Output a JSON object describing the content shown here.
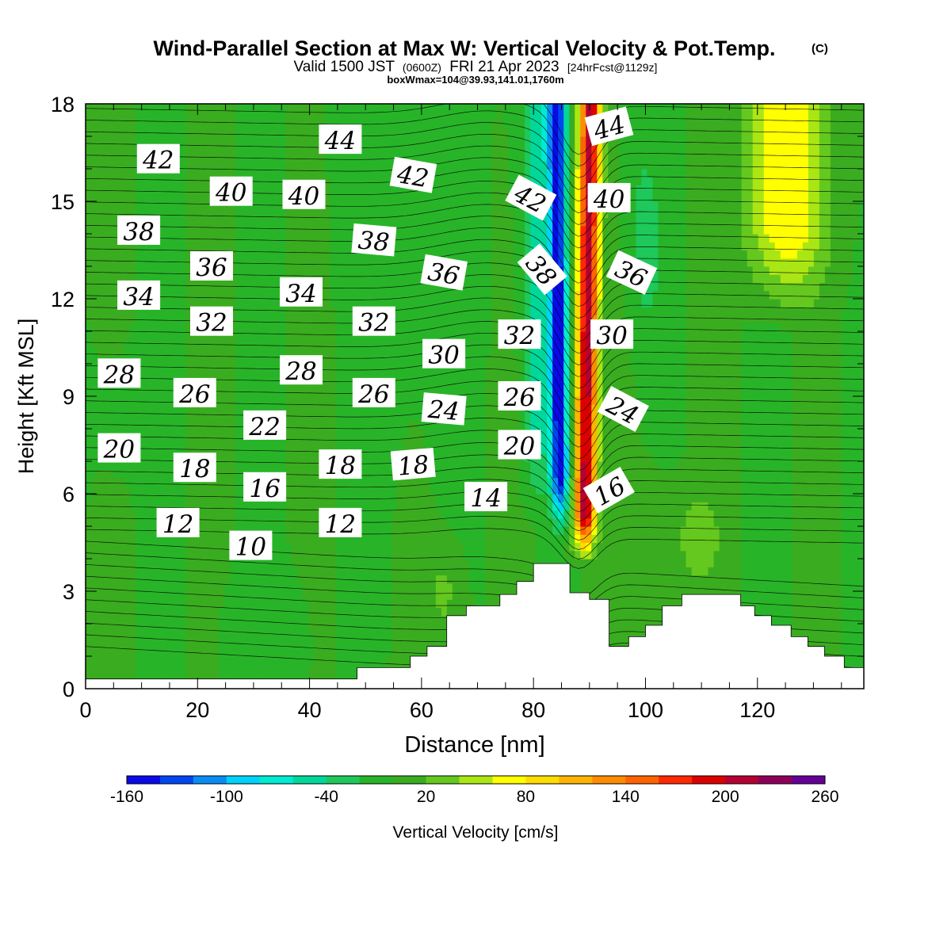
{
  "header": {
    "title_main": "Wind-Parallel Section at Max W: Vertical Velocity & Pot.Temp.",
    "title_mark": "(C)",
    "valid_a": "Valid 1500 JST",
    "valid_b": "(0600Z)",
    "valid_c": "FRI 21 Apr 2023",
    "valid_d": "[24hrFcst@1129z]",
    "box_info": "boxWmax=104@39.93,141.01,1760m"
  },
  "chart_data": {
    "type": "heatmap",
    "xlabel": "Distance [nm]",
    "ylabel": "Height [Kft MSL]",
    "xlim": [
      0,
      139
    ],
    "ylim": [
      0,
      18
    ],
    "x_ticks": [
      0,
      20,
      40,
      60,
      80,
      100,
      120
    ],
    "y_ticks": [
      0,
      3,
      6,
      9,
      12,
      15,
      18
    ],
    "colorbar": {
      "label": "Vertical Velocity [cm/s]",
      "min": -160,
      "max": 260,
      "step": 20,
      "tick_labels": [
        "-160",
        "-100",
        "-40",
        "20",
        "80",
        "140",
        "200",
        "260"
      ],
      "colors": [
        "#0a0ae8",
        "#0046f0",
        "#0a8cf5",
        "#00d2fa",
        "#00ebd2",
        "#00d89a",
        "#1ec85a",
        "#28b428",
        "#3aac20",
        "#64c81e",
        "#aae614",
        "#ffff00",
        "#ffdc00",
        "#ffb400",
        "#ff8c00",
        "#ff6400",
        "#ff2800",
        "#dc0000",
        "#b40032",
        "#8c005a",
        "#640096"
      ]
    },
    "contour_labels": [
      {
        "x": 45.5,
        "y": 16.9,
        "text": "44",
        "rot": 0
      },
      {
        "x": 13,
        "y": 16.3,
        "text": "42",
        "rot": 0
      },
      {
        "x": 58.5,
        "y": 15.8,
        "text": "42",
        "rot": 10
      },
      {
        "x": 79.5,
        "y": 15.1,
        "text": "42",
        "rot": 28
      },
      {
        "x": 93.5,
        "y": 17.3,
        "text": "44",
        "rot": -15
      },
      {
        "x": 93.5,
        "y": 15.1,
        "text": "40",
        "rot": 0
      },
      {
        "x": 26,
        "y": 15.3,
        "text": "40",
        "rot": 0
      },
      {
        "x": 39,
        "y": 15.2,
        "text": "40",
        "rot": 0
      },
      {
        "x": 9.5,
        "y": 14.1,
        "text": "38",
        "rot": 0
      },
      {
        "x": 51.5,
        "y": 13.8,
        "text": "38",
        "rot": 5
      },
      {
        "x": 81.5,
        "y": 12.9,
        "text": "38",
        "rot": 50
      },
      {
        "x": 22.5,
        "y": 13.0,
        "text": "36",
        "rot": 0
      },
      {
        "x": 64,
        "y": 12.8,
        "text": "36",
        "rot": 10
      },
      {
        "x": 97.5,
        "y": 12.8,
        "text": "36",
        "rot": 25
      },
      {
        "x": 9.5,
        "y": 12.1,
        "text": "34",
        "rot": 0
      },
      {
        "x": 38.5,
        "y": 12.2,
        "text": "34",
        "rot": 0
      },
      {
        "x": 22.5,
        "y": 11.3,
        "text": "32",
        "rot": 0
      },
      {
        "x": 51.5,
        "y": 11.3,
        "text": "32",
        "rot": 0
      },
      {
        "x": 77.5,
        "y": 10.9,
        "text": "32",
        "rot": 0
      },
      {
        "x": 64,
        "y": 10.3,
        "text": "30",
        "rot": 0
      },
      {
        "x": 94,
        "y": 10.9,
        "text": "30",
        "rot": 0
      },
      {
        "x": 6,
        "y": 9.7,
        "text": "28",
        "rot": 0
      },
      {
        "x": 38.5,
        "y": 9.8,
        "text": "28",
        "rot": 0
      },
      {
        "x": 19.5,
        "y": 9.1,
        "text": "26",
        "rot": 0
      },
      {
        "x": 51.5,
        "y": 9.1,
        "text": "26",
        "rot": 0
      },
      {
        "x": 77.5,
        "y": 9.0,
        "text": "26",
        "rot": 0
      },
      {
        "x": 64,
        "y": 8.6,
        "text": "24",
        "rot": 5
      },
      {
        "x": 96,
        "y": 8.6,
        "text": "24",
        "rot": 28
      },
      {
        "x": 32,
        "y": 8.1,
        "text": "22",
        "rot": 0
      },
      {
        "x": 6,
        "y": 7.4,
        "text": "20",
        "rot": 0
      },
      {
        "x": 77.5,
        "y": 7.5,
        "text": "20",
        "rot": 0
      },
      {
        "x": 19.5,
        "y": 6.8,
        "text": "18",
        "rot": 0
      },
      {
        "x": 45.5,
        "y": 6.9,
        "text": "18",
        "rot": 0
      },
      {
        "x": 58.5,
        "y": 6.9,
        "text": "18",
        "rot": -5
      },
      {
        "x": 32,
        "y": 6.2,
        "text": "16",
        "rot": 0
      },
      {
        "x": 93.5,
        "y": 6.1,
        "text": "16",
        "rot": -30
      },
      {
        "x": 71.5,
        "y": 5.9,
        "text": "14",
        "rot": 0
      },
      {
        "x": 16.5,
        "y": 5.1,
        "text": "12",
        "rot": 0
      },
      {
        "x": 45.5,
        "y": 5.1,
        "text": "12",
        "rot": 0
      },
      {
        "x": 29.5,
        "y": 4.4,
        "text": "10",
        "rot": 0
      }
    ],
    "terrain_kft": [
      [
        0,
        0.3
      ],
      [
        48.5,
        0.3
      ],
      [
        48.5,
        0.65
      ],
      [
        58,
        0.65
      ],
      [
        58,
        1.0
      ],
      [
        61,
        1.0
      ],
      [
        61,
        1.3
      ],
      [
        64.5,
        1.3
      ],
      [
        64.5,
        2.25
      ],
      [
        68,
        2.25
      ],
      [
        68,
        2.55
      ],
      [
        74,
        2.55
      ],
      [
        74,
        2.9
      ],
      [
        77,
        2.9
      ],
      [
        77,
        3.3
      ],
      [
        80,
        3.3
      ],
      [
        80,
        3.85
      ],
      [
        86.5,
        3.85
      ],
      [
        86.5,
        2.95
      ],
      [
        90,
        2.95
      ],
      [
        90,
        2.75
      ],
      [
        93.5,
        2.75
      ],
      [
        93.5,
        1.3
      ],
      [
        97,
        1.3
      ],
      [
        97,
        1.6
      ],
      [
        100,
        1.6
      ],
      [
        100,
        1.95
      ],
      [
        103,
        1.95
      ],
      [
        103,
        2.55
      ],
      [
        106.5,
        2.55
      ],
      [
        106.5,
        2.9
      ],
      [
        117,
        2.9
      ],
      [
        117,
        2.55
      ],
      [
        119.5,
        2.55
      ],
      [
        119.5,
        2.25
      ],
      [
        122.5,
        2.25
      ],
      [
        122.5,
        1.95
      ],
      [
        126,
        1.95
      ],
      [
        126,
        1.6
      ],
      [
        129,
        1.6
      ],
      [
        129,
        1.3
      ],
      [
        132,
        1.3
      ],
      [
        132,
        1.0
      ],
      [
        135.5,
        1.0
      ],
      [
        135.5,
        0.65
      ],
      [
        139,
        0.65
      ]
    ]
  }
}
